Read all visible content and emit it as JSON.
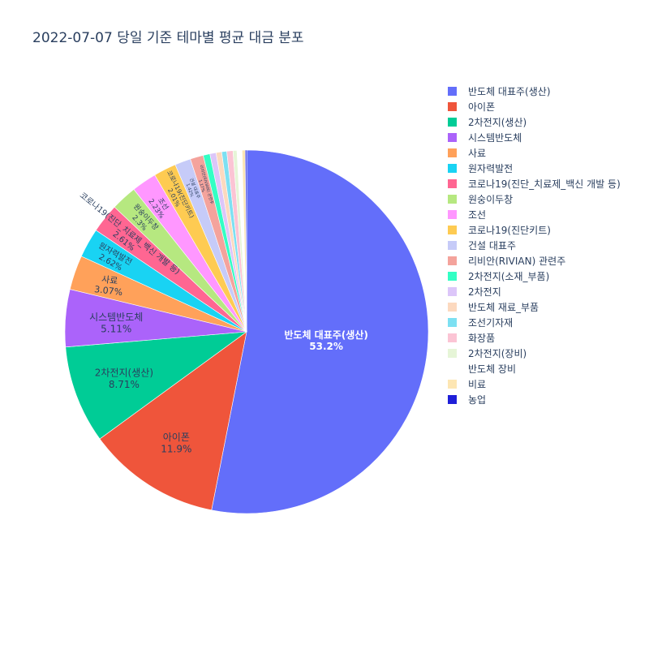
{
  "chart_data": {
    "type": "pie",
    "title": "2022-07-07 당일 기준 테마별 평균 대금 분포",
    "legend_position": "right",
    "slices": [
      {
        "label": "반도체 대표주(생산)",
        "value": 53.2,
        "text": "53.2%",
        "color": "#636efa"
      },
      {
        "label": "아이폰",
        "value": 11.9,
        "text": "11.9%",
        "color": "#EF553B"
      },
      {
        "label": "2차전지(생산)",
        "value": 8.71,
        "text": "8.71%",
        "color": "#00cc96"
      },
      {
        "label": "시스템반도체",
        "value": 5.11,
        "text": "5.11%",
        "color": "#ab63fa"
      },
      {
        "label": "사료",
        "value": 3.07,
        "text": "3.07%",
        "color": "#FFA15A"
      },
      {
        "label": "원자력발전",
        "value": 2.62,
        "text": "2.62%",
        "color": "#19d3f3"
      },
      {
        "label": "코로나19(진단_치료제_백신 개발 등)",
        "value": 2.61,
        "text": "2.61%",
        "color": "#FF6692"
      },
      {
        "label": "원숭이두창",
        "value": 2.3,
        "text": "2.3%",
        "color": "#B6E880"
      },
      {
        "label": "조선",
        "value": 2.23,
        "text": "2.23%",
        "color": "#FF97FF"
      },
      {
        "label": "코로나19(진단키트)",
        "value": 2.01,
        "text": "2.01%",
        "color": "#FECB52"
      },
      {
        "label": "건설 대표주",
        "value": 1.42,
        "text": "1.42%",
        "color": "#c6cbf8"
      },
      {
        "label": "리비안(RIVIAN) 관련주",
        "value": 1.17,
        "text": "1.17%",
        "color": "#f4a39c"
      },
      {
        "label": "2차전지(소재_부품)",
        "value": 0.6,
        "text": "",
        "color": "#33ffc4"
      },
      {
        "label": "2차전지",
        "value": 0.55,
        "text": "",
        "color": "#dcc6f9"
      },
      {
        "label": "반도체 재료_부품",
        "value": 0.5,
        "text": "",
        "color": "#fcd9bf"
      },
      {
        "label": "조선기자재",
        "value": 0.45,
        "text": "",
        "color": "#7de0f2"
      },
      {
        "label": "화장품",
        "value": 0.55,
        "text": "",
        "color": "#fbc4d4"
      },
      {
        "label": "2차전지(장비)",
        "value": 0.35,
        "text": "",
        "color": "#e6f5d7"
      },
      {
        "label": "반도체 장비",
        "value": 0.45,
        "text": "",
        "color": "#ffffff"
      },
      {
        "label": "비료",
        "value": 0.28,
        "text": "",
        "color": "#fde6b3"
      },
      {
        "label": "농업",
        "value": 0.12,
        "text": "",
        "color": "#1f1fd8"
      }
    ]
  }
}
